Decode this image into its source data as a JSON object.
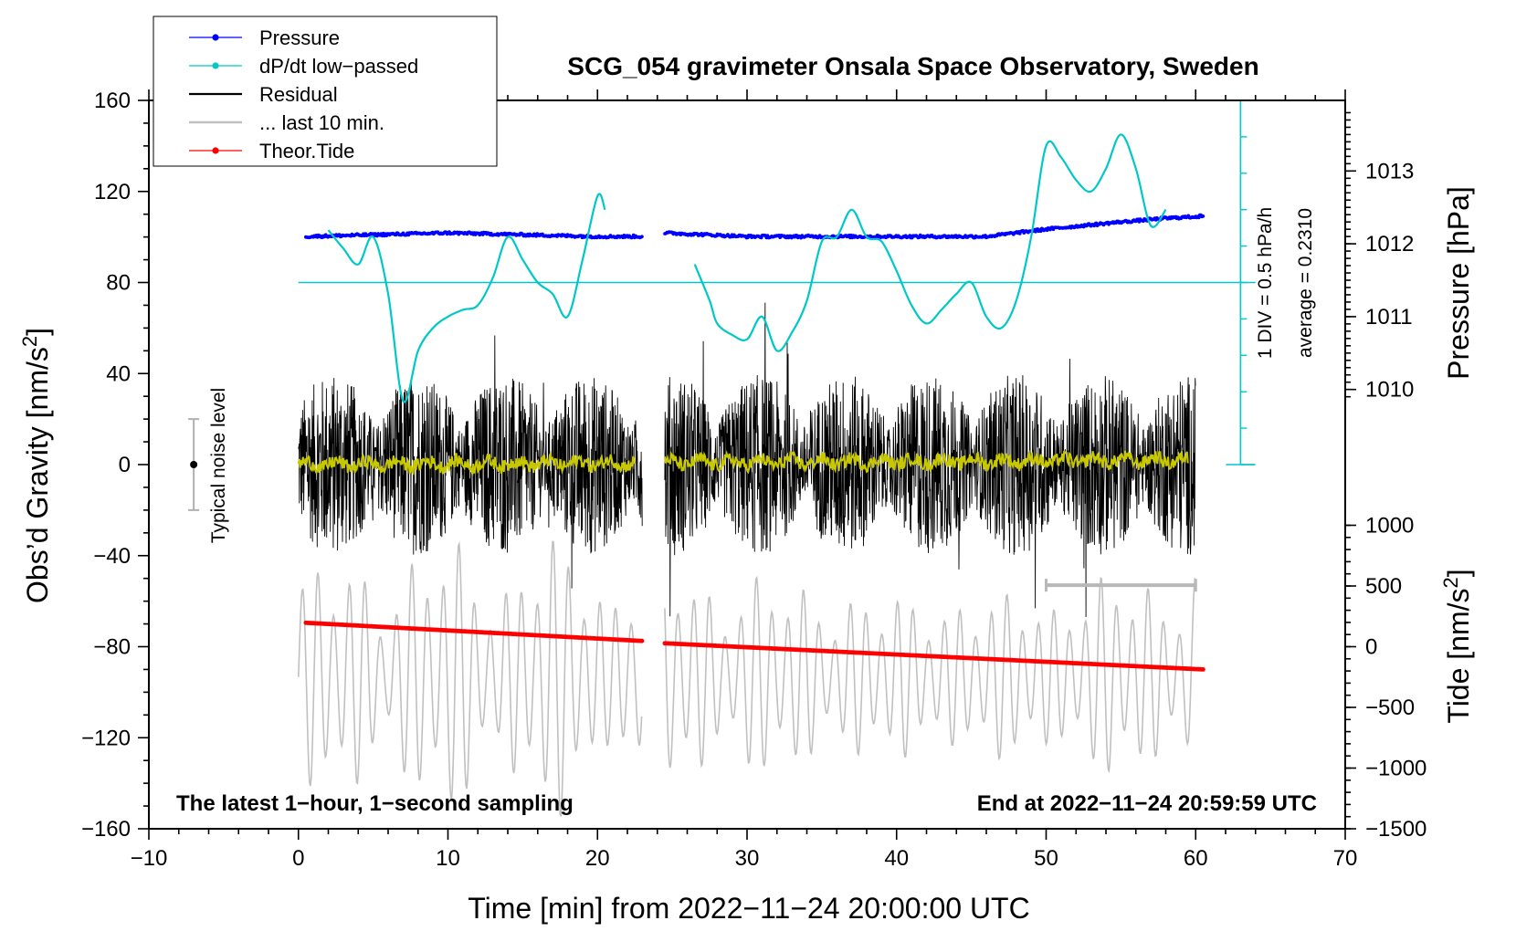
{
  "chart_data": {
    "type": "line",
    "title": "SCG_054 gravimeter Onsala Space Observatory, Sweden",
    "xlabel": "Time [min] from 2022−11−24 20:00:00 UTC",
    "ylabel_left_prefix": "Obs’d Gravity [nm/s",
    "ylabel_left_sup": "2",
    "ylabel_left_suffix": "]",
    "ylabel_right_pressure": "Pressure [hPa]",
    "ylabel_right_tide_prefix": "Tide [nm/s",
    "ylabel_right_tide_sup": "2",
    "ylabel_right_tide_suffix": "]",
    "xlim": [
      -10,
      70
    ],
    "ylim": [
      -160,
      160
    ],
    "x_ticks": [
      -10,
      0,
      10,
      20,
      30,
      40,
      50,
      60,
      70
    ],
    "x_tick_labels": [
      "−10",
      "0",
      "10",
      "20",
      "30",
      "40",
      "50",
      "60",
      "70"
    ],
    "y_ticks": [
      160,
      120,
      80,
      40,
      0,
      -40,
      -80,
      -120,
      -160
    ],
    "y_tick_labels": [
      "160",
      "120",
      "80",
      "40",
      "0",
      "−40",
      "−80",
      "−120",
      "−160"
    ],
    "pressure_axis": {
      "mapping": {
        "hPa_per_gravity_unit": 0.03125,
        "ref_hPa": 1012,
        "ref_gravity": 97
      },
      "ticks": [
        1013,
        1012,
        1011,
        1010
      ],
      "tick_labels": [
        "1013",
        "1012",
        "1011",
        "1010"
      ]
    },
    "tide_axis": {
      "mapping": {
        "tide_per_gravity_unit": 18.75,
        "ref_tide": 0,
        "ref_gravity": -80
      },
      "ticks": [
        1000,
        500,
        0,
        -500,
        -1000,
        -1500
      ],
      "tick_labels": [
        "1000",
        "500",
        "0",
        "−500",
        "−1000",
        "−1500"
      ]
    },
    "dpdt_scale": {
      "label": "1 DIV = 0.5 hPa/h",
      "average_label": "average = 0.2310",
      "zero_level_gravity": 80,
      "range_gravity": [
        0,
        160
      ],
      "div_gravity": 16
    },
    "noise_bar": {
      "label": "Typical noise level",
      "x": -7,
      "center": 0,
      "half_range": 20
    },
    "last10_bar": {
      "x_start": 50,
      "x_end": 60,
      "y": -53
    },
    "gap": [
      23,
      24.5
    ],
    "series": [
      {
        "name": "Pressure",
        "color": "#0000ff",
        "axis": "pressure",
        "x": [
          0.5,
          10,
          20,
          23,
          24.5,
          30,
          40,
          46,
          50,
          55,
          58,
          60.5
        ],
        "y": [
          1012.1,
          1012.15,
          1012.1,
          1012.1,
          1012.15,
          1012.1,
          1012.1,
          1012.1,
          1012.2,
          1012.3,
          1012.35,
          1012.38
        ]
      },
      {
        "name": "dP/dt low−passed",
        "color": "#00c8c8",
        "axis": "gravity",
        "x": [
          2,
          3,
          4,
          5,
          6,
          7,
          8,
          9,
          10,
          11,
          12,
          13,
          14,
          15,
          16,
          17,
          18,
          19,
          20,
          20.5,
          26.5,
          27.5,
          28,
          29,
          30,
          31,
          32,
          33,
          34,
          35,
          36,
          37,
          38,
          39,
          40,
          41,
          42,
          43,
          44,
          45,
          46,
          47,
          48,
          49,
          50,
          51,
          52,
          53,
          54,
          55,
          56,
          57,
          58
        ],
        "y": [
          103,
          95,
          88,
          100,
          75,
          28,
          50,
          60,
          65,
          68,
          70,
          82,
          100,
          90,
          80,
          75,
          65,
          90,
          118,
          112,
          88,
          72,
          62,
          57,
          55,
          65,
          50,
          58,
          72,
          98,
          100,
          112,
          100,
          98,
          85,
          70,
          62,
          68,
          75,
          80,
          65,
          60,
          72,
          100,
          140,
          135,
          125,
          120,
          130,
          145,
          130,
          105,
          112
        ]
      },
      {
        "name": "Residual",
        "color": "#000000",
        "axis": "gravity",
        "x": [
          0,
          60
        ],
        "amplitude": 40,
        "segments": [
          [
            0,
            23
          ],
          [
            24.5,
            60
          ]
        ]
      },
      {
        "name": "... last 10 min.",
        "color": "#c0c0c0",
        "axis": "tide",
        "x": [
          0,
          60
        ],
        "amplitude": 1200,
        "segments": [
          [
            0,
            23
          ],
          [
            24.5,
            60
          ]
        ]
      },
      {
        "name": "Theor.Tide",
        "color": "#ff0000",
        "axis": "gravity",
        "x": [
          0.5,
          23,
          24.5,
          60.5
        ],
        "y": [
          -69.5,
          -77.5,
          -78.5,
          -90
        ]
      },
      {
        "name": "smoothed residual",
        "color": "#c8c800",
        "axis": "gravity",
        "x": [
          0,
          60
        ],
        "y": [
          0,
          2
        ],
        "segments": [
          [
            0,
            22.5
          ],
          [
            24.5,
            59.5
          ]
        ]
      }
    ],
    "legend": [
      "Pressure",
      "dP/dt low−passed",
      "Residual",
      "... last 10 min.",
      "Theor.Tide"
    ],
    "legend_position": "top-left",
    "annotations": {
      "bottom_left": "The latest 1−hour, 1−second sampling",
      "bottom_right": "End at 2022−11−24 20:59:59 UTC"
    }
  }
}
